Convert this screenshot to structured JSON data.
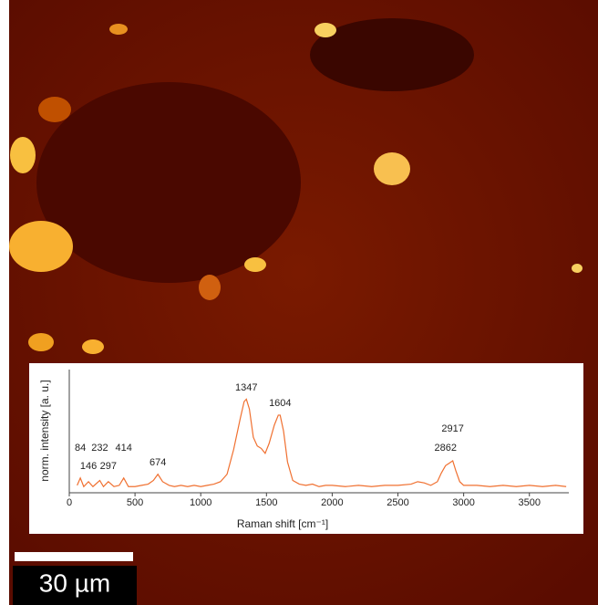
{
  "chart_data": {
    "type": "line",
    "xlabel": "Raman shift [cm⁻¹]",
    "ylabel": "norm. intensity [a. u.]",
    "scale_bar": "30 µm",
    "x": [
      60,
      84,
      110,
      146,
      180,
      232,
      260,
      297,
      340,
      380,
      414,
      450,
      500,
      550,
      600,
      640,
      674,
      710,
      760,
      800,
      850,
      900,
      950,
      1000,
      1050,
      1100,
      1150,
      1200,
      1250,
      1300,
      1330,
      1347,
      1370,
      1400,
      1430,
      1460,
      1490,
      1520,
      1560,
      1590,
      1604,
      1630,
      1660,
      1700,
      1750,
      1800,
      1850,
      1900,
      1950,
      2000,
      2100,
      2200,
      2300,
      2400,
      2500,
      2600,
      2650,
      2700,
      2750,
      2800,
      2830,
      2862,
      2890,
      2917,
      2940,
      2970,
      3000,
      3100,
      3200,
      3300,
      3400,
      3500,
      3600,
      3700,
      3780
    ],
    "series": [
      {
        "color": "#f07030",
        "values": [
          0.06,
          0.12,
          0.05,
          0.09,
          0.05,
          0.1,
          0.05,
          0.09,
          0.05,
          0.06,
          0.12,
          0.05,
          0.05,
          0.06,
          0.07,
          0.1,
          0.15,
          0.09,
          0.06,
          0.05,
          0.06,
          0.05,
          0.06,
          0.05,
          0.06,
          0.07,
          0.09,
          0.15,
          0.35,
          0.6,
          0.74,
          0.76,
          0.68,
          0.45,
          0.38,
          0.36,
          0.32,
          0.4,
          0.55,
          0.63,
          0.63,
          0.5,
          0.25,
          0.1,
          0.07,
          0.06,
          0.07,
          0.05,
          0.06,
          0.06,
          0.05,
          0.06,
          0.05,
          0.06,
          0.06,
          0.07,
          0.09,
          0.08,
          0.06,
          0.09,
          0.16,
          0.22,
          0.24,
          0.26,
          0.18,
          0.09,
          0.06,
          0.06,
          0.05,
          0.06,
          0.05,
          0.06,
          0.05,
          0.06,
          0.05
        ]
      }
    ],
    "peak_labels": [
      84,
      146,
      232,
      297,
      414,
      674,
      1347,
      1604,
      2862,
      2917
    ],
    "xlim": [
      0,
      3800
    ],
    "ylim": [
      0,
      1
    ],
    "xticks": [
      0,
      500,
      1000,
      1500,
      2000,
      2500,
      3000,
      3500
    ]
  }
}
